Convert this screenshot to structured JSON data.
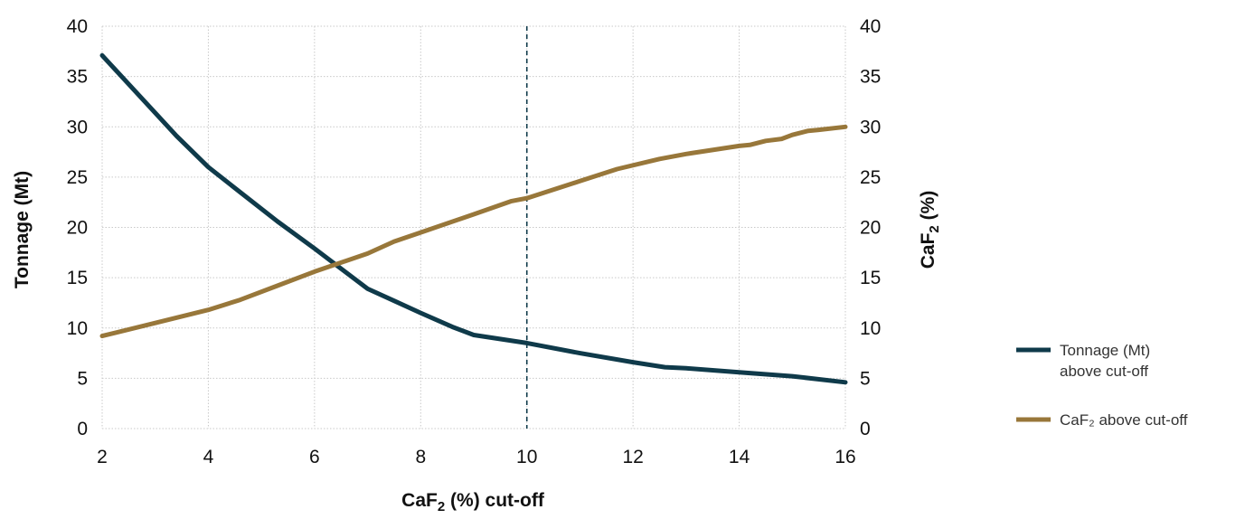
{
  "chart_data": {
    "type": "line",
    "xlabel": {
      "pre": "CaF",
      "sub": "2",
      "post": " (%) cut-off"
    },
    "ylabel_left": "Tonnage (Mt)",
    "ylabel_right": {
      "pre": "CaF",
      "sub": "2",
      "post": " (%)"
    },
    "x_ticks": [
      "2",
      "4",
      "6",
      "8",
      "10",
      "12",
      "14",
      "16"
    ],
    "y_ticks": [
      "0",
      "5",
      "10",
      "15",
      "20",
      "25",
      "30",
      "35",
      "40"
    ],
    "xlim": [
      2,
      16
    ],
    "ylim": [
      0,
      40
    ],
    "grid": true,
    "grid_style": "dotted",
    "reference_line": {
      "x": 10,
      "style": "dashed",
      "color": "#0f3a4a"
    },
    "legend_position": "right",
    "series": [
      {
        "key": "tonnage",
        "legend": [
          "Tonnage (Mt)",
          "above cut-off"
        ],
        "color": "#0f3a4a",
        "axis": "left",
        "x": [
          2,
          2.7,
          3.4,
          4,
          4.6,
          5.3,
          6,
          6.5,
          7,
          7.5,
          8,
          8.6,
          9,
          10,
          11,
          12,
          12.6,
          13,
          14,
          15,
          16
        ],
        "values": [
          37.1,
          33.1,
          29.1,
          26.0,
          23.5,
          20.6,
          17.9,
          15.9,
          13.9,
          12.7,
          11.5,
          10.1,
          9.3,
          8.5,
          7.5,
          6.6,
          6.1,
          6.0,
          5.6,
          5.2,
          4.6
        ]
      },
      {
        "key": "caf2",
        "legend": [
          "CaF₂ above cut-off"
        ],
        "color": "#98773a",
        "axis": "right",
        "x": [
          2,
          3,
          4,
          4.6,
          5.3,
          6,
          7,
          7.5,
          8,
          9,
          9.7,
          10,
          11,
          11.7,
          12.5,
          13,
          14,
          14.2,
          14.5,
          14.8,
          15,
          15.3,
          15.5,
          16
        ],
        "values": [
          9.2,
          10.5,
          11.8,
          12.8,
          14.2,
          15.6,
          17.4,
          18.6,
          19.5,
          21.3,
          22.6,
          22.9,
          24.6,
          25.8,
          26.8,
          27.3,
          28.1,
          28.2,
          28.6,
          28.8,
          29.2,
          29.6,
          29.7,
          30.0
        ]
      }
    ]
  }
}
